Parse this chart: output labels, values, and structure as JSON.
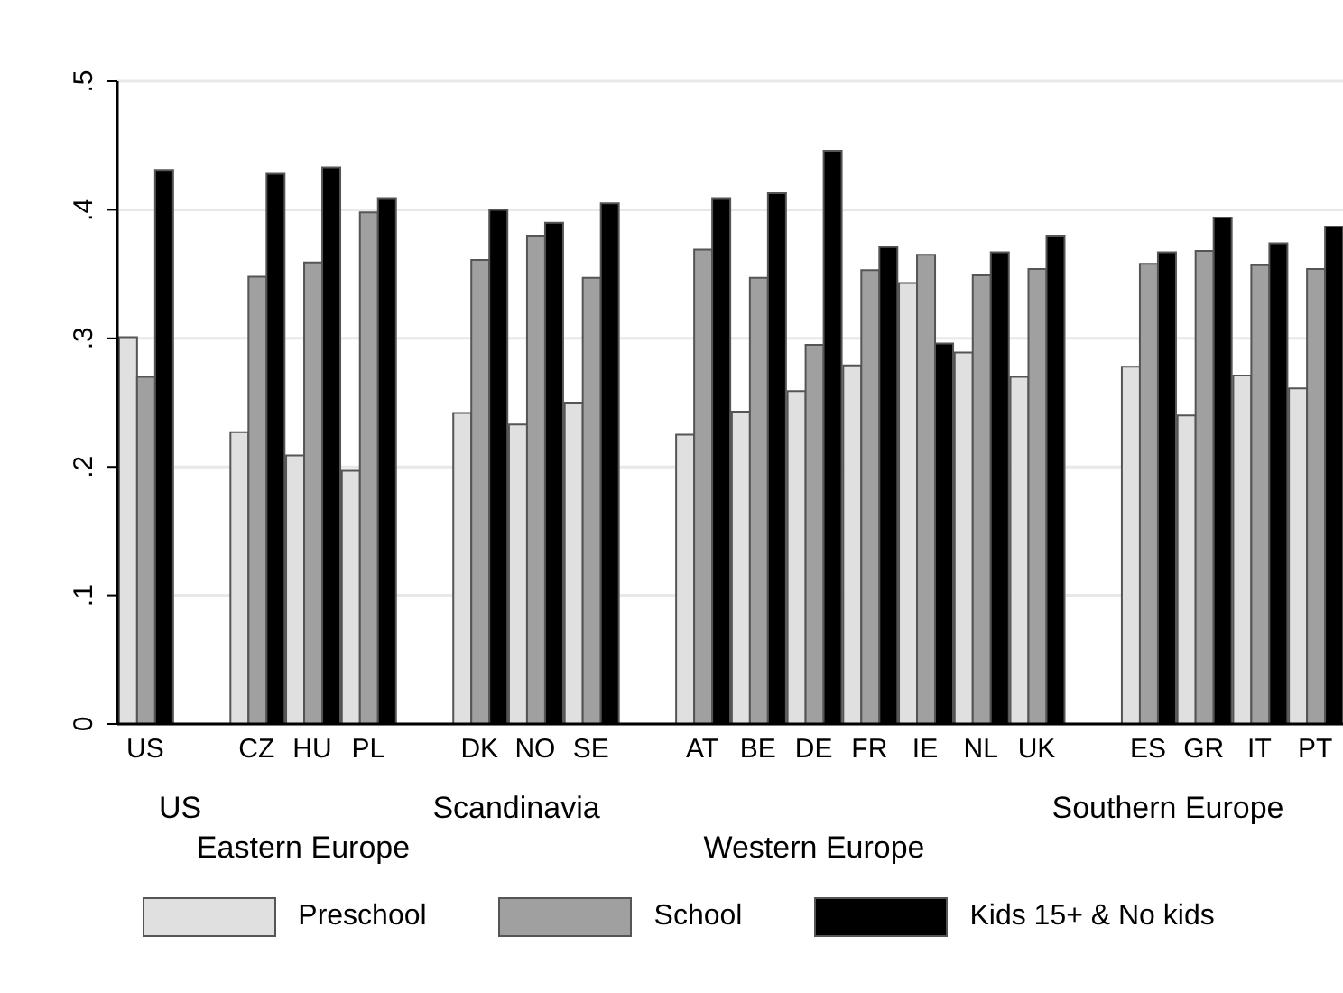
{
  "chart_data": {
    "type": "bar",
    "categories": [
      "US",
      null,
      "CZ",
      "HU",
      "PL",
      null,
      "DK",
      "NO",
      "SE",
      null,
      "AT",
      "BE",
      "DE",
      "FR",
      "IE",
      "NL",
      "UK",
      null,
      "ES",
      "GR",
      "IT",
      "PT"
    ],
    "series": [
      {
        "name": "Preschool",
        "color": "#e0e0e0",
        "values": [
          0.301,
          null,
          0.227,
          0.209,
          0.197,
          null,
          0.242,
          0.233,
          0.25,
          null,
          0.225,
          0.243,
          0.259,
          0.279,
          0.343,
          0.289,
          0.27,
          null,
          0.278,
          0.24,
          0.271,
          0.261
        ]
      },
      {
        "name": "School",
        "color": "#a0a0a0",
        "values": [
          0.27,
          null,
          0.348,
          0.359,
          0.398,
          null,
          0.361,
          0.38,
          0.347,
          null,
          0.369,
          0.347,
          0.295,
          0.353,
          0.365,
          0.349,
          0.354,
          null,
          0.358,
          0.368,
          0.357,
          0.354
        ]
      },
      {
        "name": "Kids 15+ & No kids",
        "color": "#000000",
        "values": [
          0.431,
          null,
          0.428,
          0.433,
          0.409,
          null,
          0.4,
          0.39,
          0.405,
          null,
          0.409,
          0.413,
          0.446,
          0.371,
          0.296,
          0.367,
          0.38,
          null,
          0.367,
          0.394,
          0.374,
          0.387
        ]
      }
    ],
    "ylim": [
      0,
      0.5
    ],
    "yticks": [
      0,
      {
        "value": 0.1,
        "label": ".1"
      },
      {
        "value": 0.2,
        "label": ".2"
      },
      {
        "value": 0.3,
        "label": ".3"
      },
      {
        "value": 0.4,
        "label": ".4"
      },
      {
        "value": 0.5,
        "label": ".5"
      }
    ],
    "grid": "y",
    "legend": "bottom",
    "annotations": [
      "US",
      "Eastern Europe",
      "Scandinavia",
      "Western Europe",
      "Southern Europe"
    ]
  }
}
